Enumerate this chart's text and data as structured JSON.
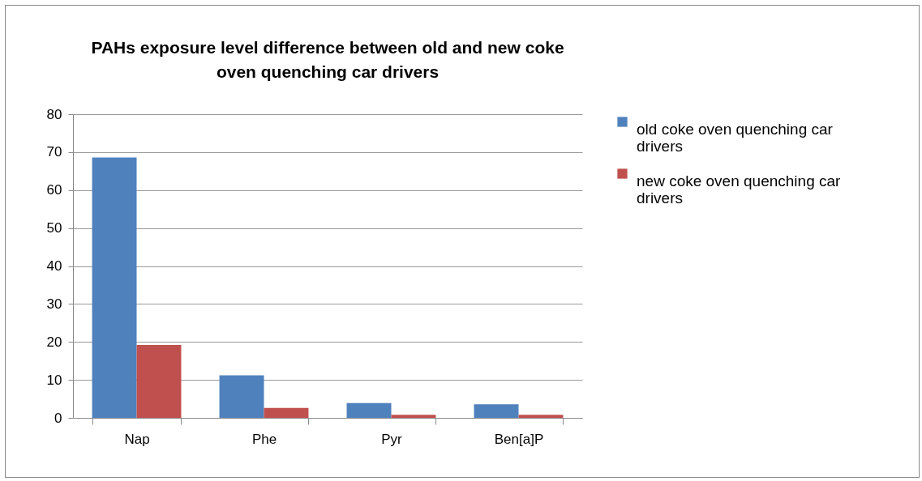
{
  "chart_data": {
    "type": "bar",
    "title": "PAHs exposure level difference between  old and new coke oven quenching car drivers",
    "categories": [
      "Nap",
      "Phe",
      "Pyr",
      "Ben[a]P"
    ],
    "series": [
      {
        "name": "old coke oven quenching car drivers",
        "color": "#4f81bd",
        "values": [
          68.6,
          11.2,
          3.9,
          3.6
        ]
      },
      {
        "name": "new coke oven quenching car drivers",
        "color": "#c0504d",
        "values": [
          19.2,
          2.6,
          0.8,
          0.8
        ]
      }
    ],
    "ylim": [
      0,
      80
    ],
    "yticks": [
      0,
      10,
      20,
      30,
      40,
      50,
      60,
      70,
      80
    ],
    "grid": "y",
    "legend": "right"
  }
}
